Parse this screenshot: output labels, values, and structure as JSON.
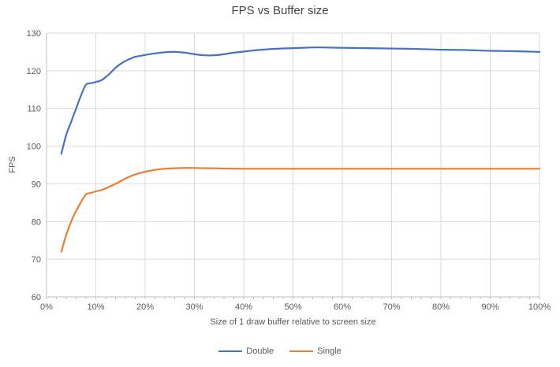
{
  "chart_data": {
    "type": "line",
    "title": "FPS vs Buffer size",
    "xlabel": "Size of 1 draw buffer relative to screen size",
    "ylabel": "FPS",
    "xlim": [
      0,
      100
    ],
    "ylim": [
      60,
      130
    ],
    "x_ticks": [
      0,
      10,
      20,
      30,
      40,
      50,
      60,
      70,
      80,
      90,
      100
    ],
    "x_tick_labels": [
      "0%",
      "10%",
      "20%",
      "30%",
      "40%",
      "50%",
      "60%",
      "70%",
      "80%",
      "90%",
      "100%"
    ],
    "y_ticks": [
      60,
      70,
      80,
      90,
      100,
      110,
      120,
      130
    ],
    "x_minor_tick_step": 2,
    "grid": true,
    "legend_position": "bottom",
    "series": [
      {
        "name": "Double",
        "color": "#4472C4",
        "points": [
          [
            3,
            98
          ],
          [
            4,
            103
          ],
          [
            5,
            106.5
          ],
          [
            6,
            110
          ],
          [
            7,
            113.5
          ],
          [
            8,
            116.3
          ],
          [
            9,
            116.7
          ],
          [
            10,
            117
          ],
          [
            11,
            117.4
          ],
          [
            12,
            118.3
          ],
          [
            13,
            119.5
          ],
          [
            14,
            120.8
          ],
          [
            15,
            121.8
          ],
          [
            16,
            122.6
          ],
          [
            17,
            123.2
          ],
          [
            18,
            123.7
          ],
          [
            20,
            124.2
          ],
          [
            22,
            124.6
          ],
          [
            24,
            124.9
          ],
          [
            26,
            125
          ],
          [
            28,
            124.8
          ],
          [
            30,
            124.4
          ],
          [
            32,
            124.1
          ],
          [
            34,
            124.1
          ],
          [
            36,
            124.4
          ],
          [
            38,
            124.8
          ],
          [
            40,
            125.1
          ],
          [
            43,
            125.5
          ],
          [
            46,
            125.8
          ],
          [
            50,
            126
          ],
          [
            55,
            126.2
          ],
          [
            60,
            126.1
          ],
          [
            65,
            126
          ],
          [
            70,
            125.9
          ],
          [
            75,
            125.8
          ],
          [
            80,
            125.6
          ],
          [
            85,
            125.5
          ],
          [
            90,
            125.3
          ],
          [
            95,
            125.2
          ],
          [
            100,
            125
          ]
        ]
      },
      {
        "name": "Single",
        "color": "#ED7D31",
        "points": [
          [
            3,
            72
          ],
          [
            4,
            76.5
          ],
          [
            5,
            80
          ],
          [
            6,
            82.8
          ],
          [
            7,
            85.2
          ],
          [
            8,
            87.2
          ],
          [
            9,
            87.6
          ],
          [
            10,
            88
          ],
          [
            11,
            88.3
          ],
          [
            12,
            88.8
          ],
          [
            13,
            89.4
          ],
          [
            14,
            90
          ],
          [
            15,
            90.7
          ],
          [
            16,
            91.4
          ],
          [
            17,
            92
          ],
          [
            18,
            92.5
          ],
          [
            20,
            93.2
          ],
          [
            22,
            93.7
          ],
          [
            24,
            94
          ],
          [
            26,
            94.15
          ],
          [
            28,
            94.2
          ],
          [
            30,
            94.2
          ],
          [
            35,
            94.1
          ],
          [
            40,
            94
          ],
          [
            50,
            94
          ],
          [
            60,
            94
          ],
          [
            70,
            94
          ],
          [
            80,
            94
          ],
          [
            90,
            94
          ],
          [
            100,
            94
          ]
        ]
      }
    ],
    "style": {
      "background": "#FFFFFF",
      "gridline_color": "#D9D9D9",
      "axis_color": "#BFBFBF",
      "tick_label_color": "#595959",
      "title_color": "#444444",
      "line_width": 2.2
    }
  }
}
